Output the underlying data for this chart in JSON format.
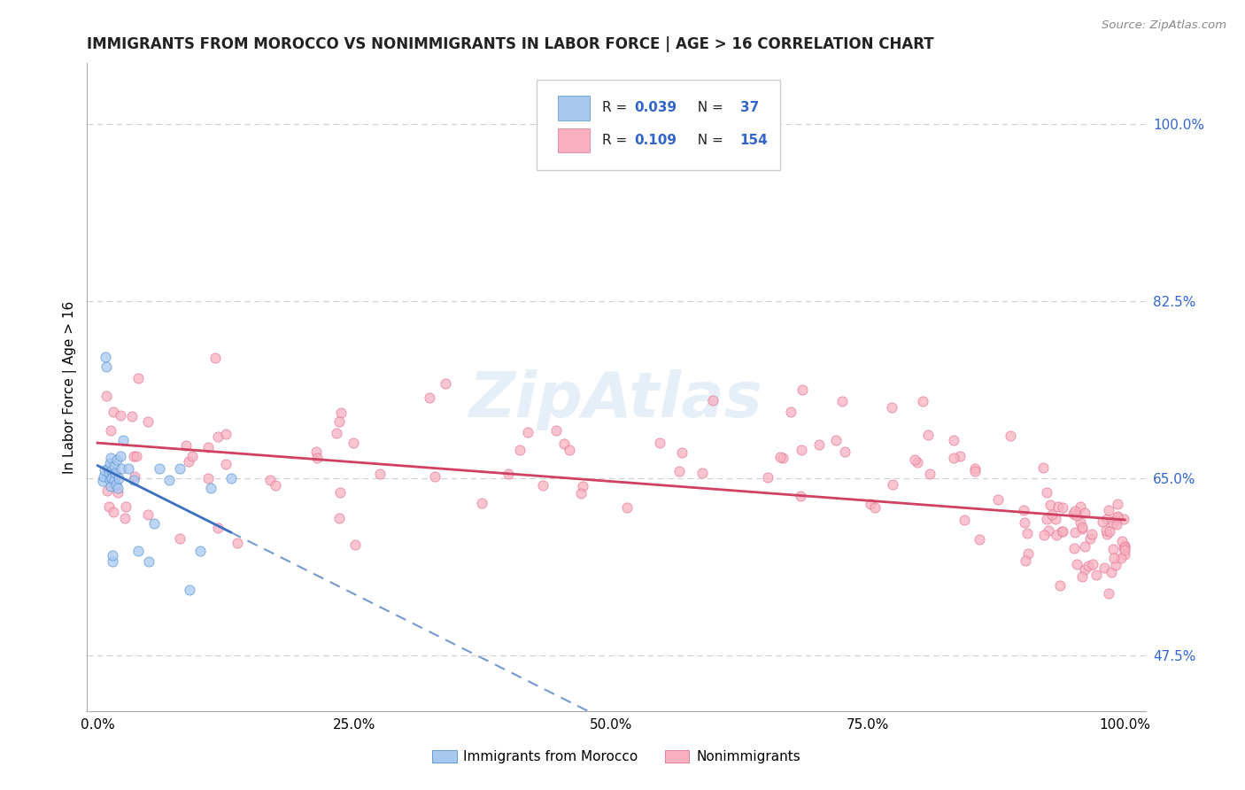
{
  "title": "IMMIGRANTS FROM MOROCCO VS NONIMMIGRANTS IN LABOR FORCE | AGE > 16 CORRELATION CHART",
  "source": "Source: ZipAtlas.com",
  "ylabel": "In Labor Force | Age > 16",
  "xlim": [
    -0.01,
    1.02
  ],
  "ylim": [
    0.42,
    1.06
  ],
  "yticks": [
    0.475,
    0.65,
    0.825,
    1.0
  ],
  "ytick_labels": [
    "47.5%",
    "65.0%",
    "82.5%",
    "100.0%"
  ],
  "xticks": [
    0.0,
    0.25,
    0.5,
    0.75,
    1.0
  ],
  "xtick_labels": [
    "0.0%",
    "25.0%",
    "50.0%",
    "75.0%",
    "100.0%"
  ],
  "blue_fill": "#a8c8f0",
  "blue_edge": "#5090d0",
  "blue_line": "#3a6fbf",
  "pink_fill": "#f8b0c0",
  "pink_edge": "#e07090",
  "pink_line": "#d04060",
  "blue_R": 0.039,
  "blue_N": 37,
  "pink_R": 0.109,
  "pink_N": 154,
  "blue_label": "Immigrants from Morocco",
  "pink_label": "Nonimmigrants",
  "watermark": "ZipAtlas",
  "bg": "#ffffff",
  "grid_color": "#d0d0d0",
  "title_color": "#222222",
  "source_color": "#888888",
  "tick_color": "#3366cc",
  "legend_text_color": "#222222"
}
